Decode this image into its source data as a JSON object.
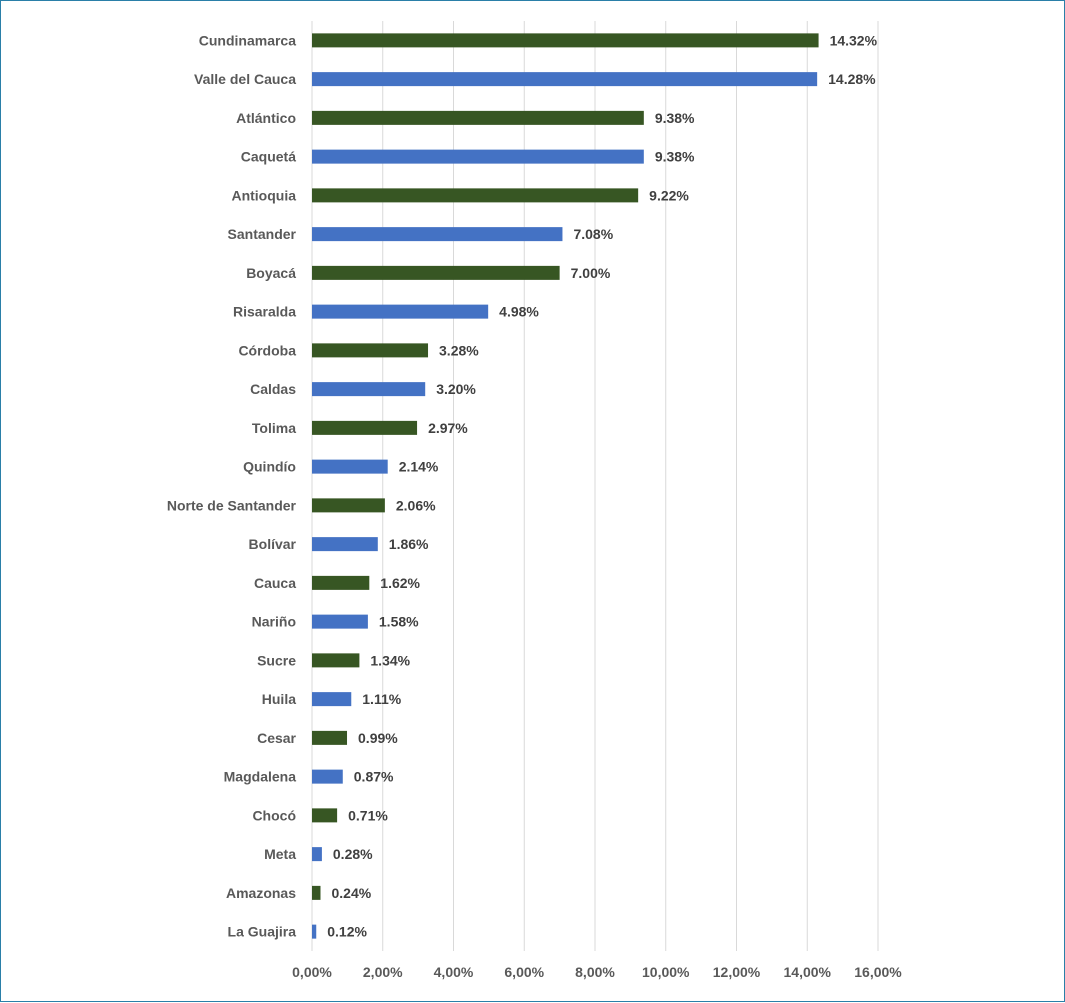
{
  "chart_data": {
    "type": "bar",
    "orientation": "horizontal",
    "categories": [
      "Cundinamarca",
      "Valle del Cauca",
      "Atlántico",
      "Caquetá",
      "Antioquia",
      "Santander",
      "Boyacá",
      "Risaralda",
      "Córdoba",
      "Caldas",
      "Tolima",
      "Quindío",
      "Norte de Santander",
      "Bolívar",
      "Cauca",
      "Nariño",
      "Sucre",
      "Huila",
      "Cesar",
      "Magdalena",
      "Chocó",
      "Meta",
      "Amazonas",
      "La Guajira"
    ],
    "values": [
      14.32,
      14.28,
      9.38,
      9.38,
      9.22,
      7.08,
      7.0,
      4.98,
      3.28,
      3.2,
      2.97,
      2.14,
      2.06,
      1.86,
      1.62,
      1.58,
      1.34,
      1.11,
      0.99,
      0.87,
      0.71,
      0.28,
      0.24,
      0.12
    ],
    "value_labels": [
      "14.32%",
      "14.28%",
      "9.38%",
      "9.38%",
      "9.22%",
      "7.08%",
      "7.00%",
      "4.98%",
      "3.28%",
      "3.20%",
      "2.97%",
      "2.14%",
      "2.06%",
      "1.86%",
      "1.62%",
      "1.58%",
      "1.34%",
      "1.11%",
      "0.99%",
      "0.87%",
      "0.71%",
      "0.28%",
      "0.24%",
      "0.12%"
    ],
    "xlim": [
      0,
      16
    ],
    "x_ticks": [
      "0,00%",
      "2,00%",
      "4,00%",
      "6,00%",
      "8,00%",
      "10,00%",
      "12,00%",
      "14,00%",
      "16,00%"
    ],
    "grid": true,
    "legend": "none",
    "title": "",
    "xlabel": "",
    "ylabel": "",
    "colors": [
      "#375623",
      "#4472c4"
    ]
  }
}
